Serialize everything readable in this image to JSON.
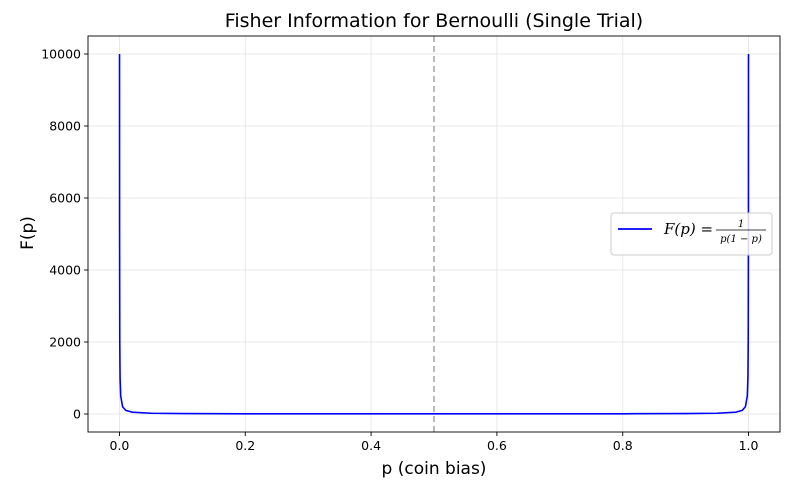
{
  "chart_data": {
    "type": "line",
    "title": "Fisher Information for Bernoulli (Single Trial)",
    "xlabel": "p (coin bias)",
    "ylabel": "F(p)",
    "xlim": [
      -0.05,
      1.05
    ],
    "ylim": [
      -500,
      10500
    ],
    "xticks": [
      0.0,
      0.2,
      0.4,
      0.6,
      0.8,
      1.0
    ],
    "xtick_labels": [
      "0.0",
      "0.2",
      "0.4",
      "0.6",
      "0.8",
      "1.0"
    ],
    "yticks": [
      0,
      2000,
      4000,
      6000,
      8000,
      10000
    ],
    "ytick_labels": [
      "0",
      "2000",
      "4000",
      "6000",
      "8000",
      "10000"
    ],
    "grid": true,
    "legend_position": "center-right",
    "reference_line": {
      "orientation": "vertical",
      "x": 0.5,
      "style": "dashed",
      "color": "#aaaaaa"
    },
    "series": [
      {
        "name": "F(p) = 1 / (p(1−p))",
        "color": "#0000ff",
        "x": [
          0.0001,
          0.0002,
          0.0005,
          0.001,
          0.002,
          0.005,
          0.01,
          0.02,
          0.05,
          0.1,
          0.2,
          0.3,
          0.4,
          0.5,
          0.6,
          0.7,
          0.8,
          0.9,
          0.95,
          0.98,
          0.99,
          0.995,
          0.998,
          0.999,
          0.9995,
          0.9998,
          0.9999
        ],
        "y": [
          10001,
          5001,
          2001,
          1001,
          501,
          201,
          101,
          51,
          21,
          11.1,
          6.25,
          4.76,
          4.17,
          4.0,
          4.17,
          4.76,
          6.25,
          11.1,
          21,
          51,
          101,
          201,
          501,
          1001,
          2001,
          5001,
          10001
        ]
      }
    ]
  },
  "legend": {
    "lhs": "F(p) =",
    "numerator": "1",
    "denominator": "p(1 − p)"
  }
}
